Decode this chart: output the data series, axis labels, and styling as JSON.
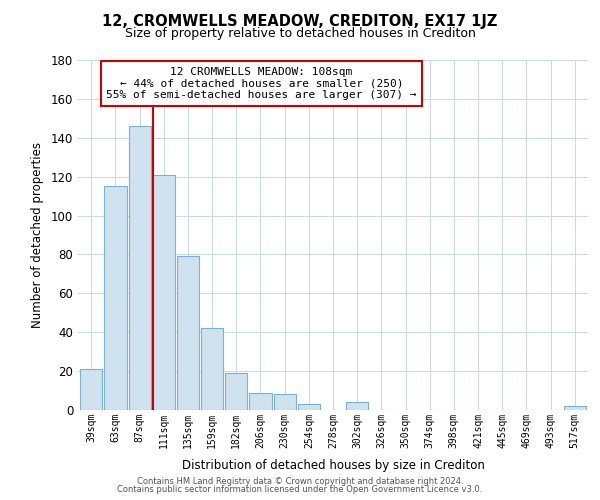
{
  "title": "12, CROMWELLS MEADOW, CREDITON, EX17 1JZ",
  "subtitle": "Size of property relative to detached houses in Crediton",
  "xlabel": "Distribution of detached houses by size in Crediton",
  "ylabel": "Number of detached properties",
  "bar_color": "#cfe2f0",
  "bar_edge_color": "#7ab0d4",
  "background_color": "#ffffff",
  "grid_color": "#c8d8e8",
  "annotation_line_color": "#cc0000",
  "annotation_box_edge": "#cc0000",
  "categories": [
    "39sqm",
    "63sqm",
    "87sqm",
    "111sqm",
    "135sqm",
    "159sqm",
    "182sqm",
    "206sqm",
    "230sqm",
    "254sqm",
    "278sqm",
    "302sqm",
    "326sqm",
    "350sqm",
    "374sqm",
    "398sqm",
    "421sqm",
    "445sqm",
    "469sqm",
    "493sqm",
    "517sqm"
  ],
  "values": [
    21,
    115,
    146,
    121,
    79,
    42,
    19,
    9,
    8,
    3,
    0,
    4,
    0,
    0,
    0,
    0,
    0,
    0,
    0,
    0,
    2
  ],
  "property_line_bin": 3,
  "annotation_text_line1": "12 CROMWELLS MEADOW: 108sqm",
  "annotation_text_line2": "← 44% of detached houses are smaller (250)",
  "annotation_text_line3": "55% of semi-detached houses are larger (307) →",
  "ylim": [
    0,
    180
  ],
  "yticks": [
    0,
    20,
    40,
    60,
    80,
    100,
    120,
    140,
    160,
    180
  ],
  "footer_line1": "Contains HM Land Registry data © Crown copyright and database right 2024.",
  "footer_line2": "Contains public sector information licensed under the Open Government Licence v3.0."
}
